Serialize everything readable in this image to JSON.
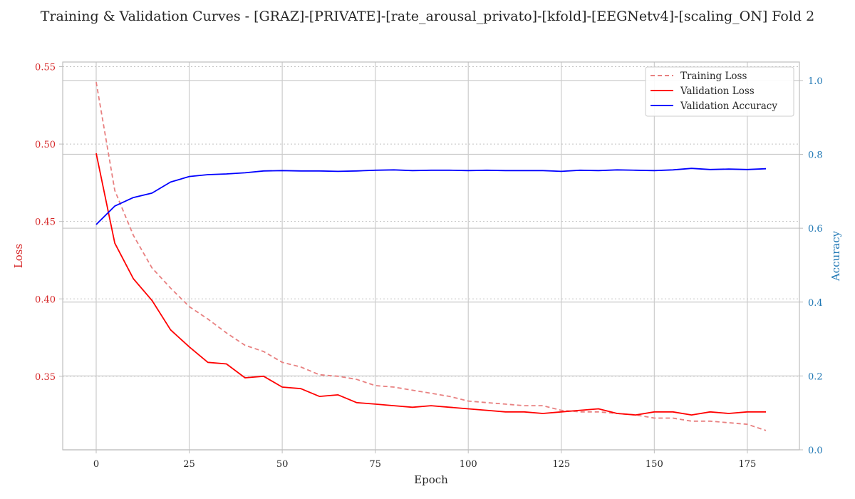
{
  "chart_data": {
    "type": "line",
    "title": "Training & Validation Curves - [GRAZ]-[PRIVATE]-[rate_arousal_privato]-[kfold]-[EEGNetv4]-[scaling_ON] Fold 2",
    "xlabel": "Epoch",
    "ylabel_left": "Loss",
    "ylabel_right": "Accuracy",
    "xlim": [
      -9,
      189
    ],
    "ylim_left": [
      0.3025,
      0.553
    ],
    "ylim_right": [
      0.0,
      1.05
    ],
    "x_ticks": [
      0,
      25,
      50,
      75,
      100,
      125,
      150,
      175
    ],
    "y_left_ticks": [
      0.35,
      0.4,
      0.45,
      0.5,
      0.55
    ],
    "y_left_tick_labels": [
      "0.35",
      "0.40",
      "0.45",
      "0.50",
      "0.55"
    ],
    "y_right_ticks": [
      0.0,
      0.2,
      0.4,
      0.6,
      0.8,
      1.0
    ],
    "y_right_tick_labels": [
      "0.0",
      "0.2",
      "0.4",
      "0.6",
      "0.8",
      "1.0"
    ],
    "grid": true,
    "legend_position": "top-right",
    "colors": {
      "training_loss": "#e88080",
      "validation_loss": "#ff0000",
      "validation_accuracy": "#0000ff",
      "left_axis": "#d62728",
      "right_axis": "#1f77b4"
    },
    "series": [
      {
        "name": "Training Loss",
        "axis": "left",
        "style": "dashed",
        "x_start": 0,
        "x_step": 5,
        "values": [
          0.54,
          0.47,
          0.441,
          0.42,
          0.407,
          0.395,
          0.387,
          0.378,
          0.37,
          0.366,
          0.359,
          0.356,
          0.351,
          0.35,
          0.348,
          0.344,
          0.343,
          0.341,
          0.339,
          0.337,
          0.334,
          0.333,
          0.332,
          0.331,
          0.331,
          0.328,
          0.327,
          0.327,
          0.326,
          0.325,
          0.323,
          0.323,
          0.321,
          0.321,
          0.32,
          0.319,
          0.315
        ]
      },
      {
        "name": "Validation Loss",
        "axis": "left",
        "style": "solid",
        "x_start": 0,
        "x_step": 5,
        "values": [
          0.494,
          0.436,
          0.413,
          0.399,
          0.38,
          0.369,
          0.359,
          0.358,
          0.349,
          0.35,
          0.343,
          0.342,
          0.337,
          0.338,
          0.333,
          0.332,
          0.331,
          0.33,
          0.331,
          0.33,
          0.329,
          0.328,
          0.327,
          0.327,
          0.326,
          0.327,
          0.328,
          0.329,
          0.326,
          0.325,
          0.327,
          0.327,
          0.325,
          0.327,
          0.326,
          0.327,
          0.327
        ]
      },
      {
        "name": "Validation Accuracy",
        "axis": "right",
        "style": "solid",
        "x_start": 0,
        "x_step": 5,
        "values": [
          0.61,
          0.66,
          0.683,
          0.695,
          0.725,
          0.74,
          0.745,
          0.747,
          0.75,
          0.755,
          0.756,
          0.755,
          0.755,
          0.754,
          0.755,
          0.757,
          0.758,
          0.756,
          0.757,
          0.757,
          0.756,
          0.757,
          0.756,
          0.756,
          0.756,
          0.754,
          0.757,
          0.756,
          0.758,
          0.757,
          0.756,
          0.758,
          0.762,
          0.759,
          0.76,
          0.759,
          0.761
        ]
      }
    ]
  }
}
